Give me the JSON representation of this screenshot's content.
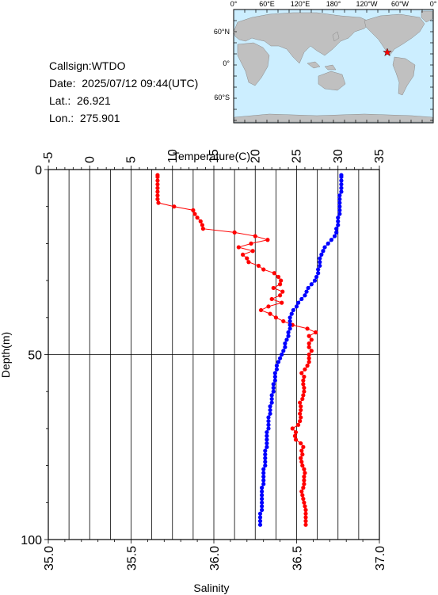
{
  "info": {
    "callsign": "Callsign:WTDO",
    "date": "Date:  2025/07/12 09:44(UTC)",
    "lat": "Lat.:  26.921",
    "lon": "Lon.:  275.901"
  },
  "map": {
    "top_ticks": [
      "0°",
      "60°E",
      "120°E",
      "180°",
      "120°W",
      "60°W",
      "0°"
    ],
    "left_ticks": [
      "60°N",
      "0°",
      "60°S"
    ],
    "ocean_color": "#cceeff",
    "land_color": "#c0c0c0",
    "marker_color": "#ff0000",
    "marker_icon": "star-icon"
  },
  "chart_data": {
    "type": "line",
    "title": "",
    "x_top_label": "Temperature(C)",
    "x_bottom_label": "Salinity",
    "y_label": "Depth(m)",
    "temperature_range": [
      -5,
      35
    ],
    "salinity_range": [
      35.0,
      37.0
    ],
    "depth_range": [
      0,
      100
    ],
    "temperature_ticks": [
      "-5",
      "0",
      "5",
      "10",
      "15",
      "20",
      "25",
      "30",
      "35"
    ],
    "salinity_ticks": [
      "35.0",
      "35.5",
      "36.0",
      "36.5",
      "37.0"
    ],
    "depth_ticks": [
      "0",
      "50",
      "100"
    ],
    "series": [
      {
        "name": "",
        "axis": "temperature",
        "color": "#ff0000",
        "points": [
          [
            8.2,
            1.5
          ],
          [
            8.2,
            2.0
          ],
          [
            8.2,
            3.0
          ],
          [
            8.2,
            4.0
          ],
          [
            8.2,
            5.0
          ],
          [
            8.2,
            6.0
          ],
          [
            8.2,
            7.0
          ],
          [
            8.2,
            8.0
          ],
          [
            8.3,
            9.0
          ],
          [
            10.2,
            10.0
          ],
          [
            12.5,
            11.0
          ],
          [
            12.7,
            12.0
          ],
          [
            13.0,
            13.0
          ],
          [
            13.4,
            14.0
          ],
          [
            13.6,
            15.0
          ],
          [
            13.7,
            16.0
          ],
          [
            17.5,
            17.0
          ],
          [
            20.0,
            18.0
          ],
          [
            21.5,
            19.0
          ],
          [
            19.5,
            20.0
          ],
          [
            18.0,
            21.0
          ],
          [
            19.7,
            22.0
          ],
          [
            18.5,
            23.0
          ],
          [
            19.0,
            24.0
          ],
          [
            19.2,
            25.0
          ],
          [
            20.4,
            26.0
          ],
          [
            21.0,
            27.0
          ],
          [
            22.3,
            28.0
          ],
          [
            22.8,
            29.0
          ],
          [
            23.1,
            30.0
          ],
          [
            23.0,
            31.0
          ],
          [
            22.2,
            32.0
          ],
          [
            23.3,
            33.0
          ],
          [
            23.0,
            34.0
          ],
          [
            22.0,
            35.0
          ],
          [
            23.2,
            36.0
          ],
          [
            21.6,
            37.0
          ],
          [
            20.7,
            38.0
          ],
          [
            21.8,
            39.0
          ],
          [
            22.5,
            40.0
          ],
          [
            23.4,
            41.0
          ],
          [
            24.5,
            42.0
          ],
          [
            26.3,
            43.0
          ],
          [
            27.3,
            44.0
          ],
          [
            26.5,
            45.0
          ],
          [
            26.8,
            46.0
          ],
          [
            26.5,
            47.0
          ],
          [
            26.5,
            48.0
          ],
          [
            26.8,
            49.0
          ],
          [
            26.5,
            50.0
          ],
          [
            26.5,
            51.0
          ],
          [
            26.5,
            52.0
          ],
          [
            26.3,
            53.0
          ],
          [
            26.0,
            54.0
          ],
          [
            25.6,
            55.0
          ],
          [
            25.9,
            56.0
          ],
          [
            25.8,
            57.0
          ],
          [
            25.8,
            58.0
          ],
          [
            25.9,
            59.0
          ],
          [
            25.9,
            60.0
          ],
          [
            25.8,
            61.0
          ],
          [
            25.7,
            62.0
          ],
          [
            25.4,
            63.0
          ],
          [
            25.5,
            64.0
          ],
          [
            25.5,
            65.0
          ],
          [
            25.4,
            66.0
          ],
          [
            25.5,
            67.0
          ],
          [
            25.4,
            68.0
          ],
          [
            25.2,
            69.0
          ],
          [
            24.5,
            70.0
          ],
          [
            24.9,
            71.0
          ],
          [
            24.8,
            72.0
          ],
          [
            24.9,
            73.0
          ],
          [
            25.5,
            74.0
          ],
          [
            25.8,
            75.0
          ],
          [
            25.6,
            76.0
          ],
          [
            25.7,
            77.0
          ],
          [
            25.5,
            78.0
          ],
          [
            25.6,
            79.0
          ],
          [
            25.7,
            80.0
          ],
          [
            25.9,
            81.0
          ],
          [
            26.0,
            82.0
          ],
          [
            25.9,
            83.0
          ],
          [
            25.9,
            84.0
          ],
          [
            25.9,
            85.0
          ],
          [
            25.8,
            86.0
          ],
          [
            25.6,
            87.0
          ],
          [
            25.7,
            88.0
          ],
          [
            25.8,
            89.0
          ],
          [
            25.9,
            90.0
          ],
          [
            26.0,
            91.0
          ],
          [
            26.1,
            92.0
          ],
          [
            26.1,
            93.0
          ],
          [
            26.1,
            94.0
          ],
          [
            26.1,
            95.0
          ],
          [
            26.1,
            96.0
          ]
        ]
      },
      {
        "name": "",
        "axis": "salinity",
        "color": "#0000ff",
        "points": [
          [
            36.77,
            1.5
          ],
          [
            36.77,
            2.0
          ],
          [
            36.77,
            3.0
          ],
          [
            36.77,
            4.0
          ],
          [
            36.77,
            5.0
          ],
          [
            36.77,
            6.0
          ],
          [
            36.76,
            7.0
          ],
          [
            36.76,
            8.0
          ],
          [
            36.76,
            9.0
          ],
          [
            36.76,
            10.0
          ],
          [
            36.76,
            11.0
          ],
          [
            36.76,
            12.0
          ],
          [
            36.75,
            13.0
          ],
          [
            36.75,
            14.0
          ],
          [
            36.75,
            15.0
          ],
          [
            36.74,
            16.0
          ],
          [
            36.74,
            17.0
          ],
          [
            36.73,
            18.0
          ],
          [
            36.71,
            19.0
          ],
          [
            36.69,
            20.0
          ],
          [
            36.67,
            21.0
          ],
          [
            36.66,
            22.0
          ],
          [
            36.65,
            23.0
          ],
          [
            36.64,
            24.0
          ],
          [
            36.64,
            25.0
          ],
          [
            36.64,
            26.0
          ],
          [
            36.63,
            27.0
          ],
          [
            36.63,
            28.0
          ],
          [
            36.62,
            29.0
          ],
          [
            36.61,
            30.0
          ],
          [
            36.59,
            31.0
          ],
          [
            36.57,
            32.0
          ],
          [
            36.56,
            33.0
          ],
          [
            36.55,
            34.0
          ],
          [
            36.53,
            35.0
          ],
          [
            36.51,
            36.0
          ],
          [
            36.5,
            37.0
          ],
          [
            36.48,
            38.0
          ],
          [
            36.47,
            39.0
          ],
          [
            36.46,
            40.0
          ],
          [
            36.46,
            41.0
          ],
          [
            36.46,
            42.0
          ],
          [
            36.46,
            43.0
          ],
          [
            36.45,
            44.0
          ],
          [
            36.45,
            45.0
          ],
          [
            36.44,
            46.0
          ],
          [
            36.43,
            47.0
          ],
          [
            36.43,
            48.0
          ],
          [
            36.42,
            49.0
          ],
          [
            36.41,
            50.0
          ],
          [
            36.4,
            51.0
          ],
          [
            36.39,
            52.0
          ],
          [
            36.38,
            53.0
          ],
          [
            36.38,
            54.0
          ],
          [
            36.37,
            55.0
          ],
          [
            36.37,
            56.0
          ],
          [
            36.37,
            57.0
          ],
          [
            36.36,
            58.0
          ],
          [
            36.36,
            59.0
          ],
          [
            36.36,
            60.0
          ],
          [
            36.35,
            61.0
          ],
          [
            36.35,
            62.0
          ],
          [
            36.35,
            63.0
          ],
          [
            36.34,
            64.0
          ],
          [
            36.34,
            65.0
          ],
          [
            36.34,
            66.0
          ],
          [
            36.33,
            67.0
          ],
          [
            36.33,
            68.0
          ],
          [
            36.33,
            69.0
          ],
          [
            36.33,
            70.0
          ],
          [
            36.32,
            71.0
          ],
          [
            36.32,
            72.0
          ],
          [
            36.32,
            73.0
          ],
          [
            36.32,
            74.0
          ],
          [
            36.32,
            75.0
          ],
          [
            36.31,
            76.0
          ],
          [
            36.31,
            77.0
          ],
          [
            36.31,
            78.0
          ],
          [
            36.31,
            79.0
          ],
          [
            36.31,
            80.0
          ],
          [
            36.3,
            81.0
          ],
          [
            36.3,
            82.0
          ],
          [
            36.3,
            83.0
          ],
          [
            36.3,
            84.0
          ],
          [
            36.3,
            85.0
          ],
          [
            36.29,
            86.0
          ],
          [
            36.29,
            87.0
          ],
          [
            36.29,
            88.0
          ],
          [
            36.29,
            89.0
          ],
          [
            36.29,
            90.0
          ],
          [
            36.29,
            91.0
          ],
          [
            36.29,
            92.0
          ],
          [
            36.28,
            93.0
          ],
          [
            36.28,
            94.0
          ],
          [
            36.28,
            95.0
          ],
          [
            36.28,
            96.0
          ]
        ]
      }
    ]
  }
}
